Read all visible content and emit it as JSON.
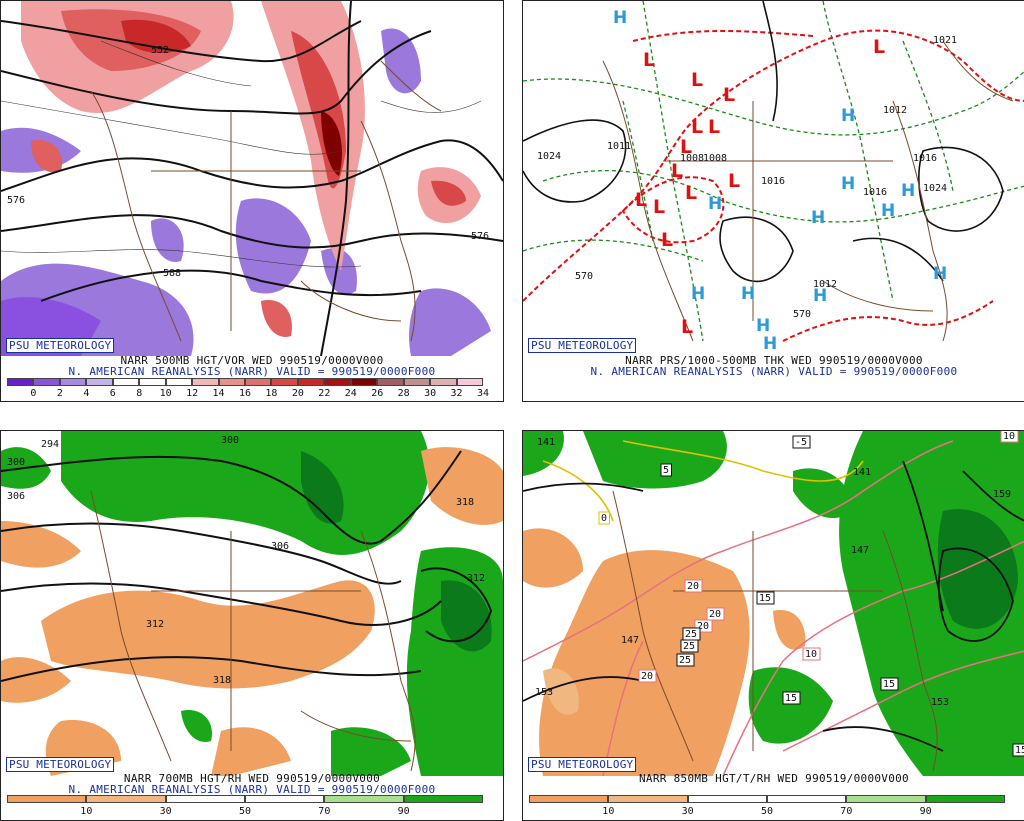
{
  "panels": [
    {
      "id": "vort500",
      "badge": "PSU METEOROLOGY",
      "caption1": "NARR 500MB HGT/VOR WED 990519/0000V000",
      "caption2": "N. AMERICAN REANALYSIS (NARR) VALID = 990519/0000F000",
      "legend": {
        "colors": [
          "#6a1fcf",
          "#8a55d8",
          "#a78ae0",
          "#c2b4ea",
          "#ffffff",
          "#ffffff",
          "#ffffff",
          "#f0b8b8",
          "#e89090",
          "#e07070",
          "#d84848",
          "#c82828",
          "#a81010",
          "#800000",
          "#a06060",
          "#c09090",
          "#e0b0b0",
          "#f8c8d8"
        ],
        "labels": [
          "0",
          "2",
          "4",
          "6",
          "8",
          "10",
          "12",
          "14",
          "16",
          "18",
          "20",
          "22",
          "24",
          "26",
          "28",
          "30",
          "32",
          "34"
        ]
      },
      "labels": [
        "552",
        "576",
        "576",
        "588"
      ]
    },
    {
      "id": "thk",
      "badge": "PSU METEOROLOGY",
      "caption1": "NARR PRS/1000-500MB THK WED 990519/0000V000",
      "caption2": "N. AMERICAN REANALYSIS (NARR) VALID = 990519/0000F000",
      "lows": [
        "L",
        "L",
        "L",
        "L",
        "L",
        "L",
        "L",
        "L",
        "L",
        "L",
        "L",
        "L",
        "L",
        "L"
      ],
      "highs": [
        "H",
        "H",
        "H",
        "H",
        "H",
        "H",
        "H",
        "H",
        "H",
        "H",
        "H",
        "H",
        "H"
      ],
      "labels": [
        "1024",
        "1008",
        "1008",
        "1016",
        "1016",
        "1016",
        "1012",
        "570",
        "570",
        "1021",
        "1024",
        "1012",
        "1011"
      ],
      "high_color": "#2a9ad8",
      "low_color": "#e01010"
    },
    {
      "id": "rh700",
      "badge": "PSU METEOROLOGY",
      "caption1": "NARR 700MB HGT/RH WED 990519/0000V000",
      "caption2": "N. AMERICAN REANALYSIS (NARR) VALID = 990519/0000F000",
      "legend": {
        "colors": [
          "#f0a060",
          "#f0b880",
          "#ffffff",
          "#ffffff",
          "#a8e090",
          "#1aa81a"
        ],
        "labels": [
          "10",
          "30",
          "50",
          "70",
          "90"
        ]
      },
      "labels": [
        "294",
        "300",
        "306",
        "300",
        "306",
        "318",
        "312",
        "312",
        "318"
      ]
    },
    {
      "id": "rh850",
      "badge": "PSU METEOROLOGY",
      "caption1": "NARR 850MB HGT/T/RH WED 990519/0000V000",
      "caption2": "",
      "legend": {
        "colors": [
          "#f0a060",
          "#f0b880",
          "#ffffff",
          "#ffffff",
          "#a8e090",
          "#1aa81a"
        ],
        "labels": [
          "10",
          "30",
          "50",
          "70",
          "90"
        ]
      },
      "labels": [
        "141",
        "-5",
        "5",
        "0",
        "141",
        "159",
        "147",
        "20",
        "20",
        "20",
        "15",
        "25",
        "25",
        "25",
        "20",
        "10",
        "147",
        "153",
        "15",
        "15",
        "153",
        "15",
        "10"
      ]
    }
  ]
}
